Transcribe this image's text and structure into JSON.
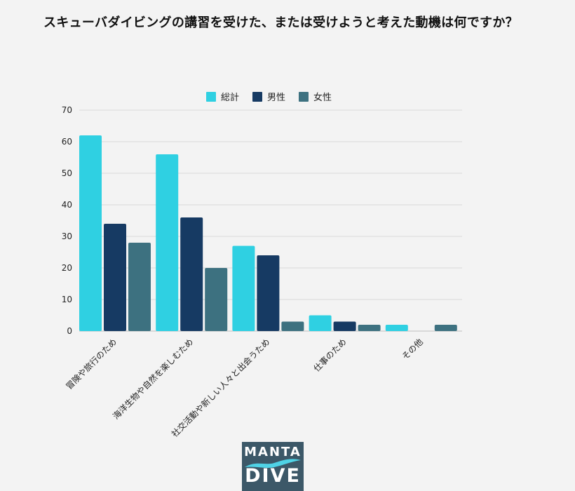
{
  "title": "スキューバダイビングの講習を受けた、または受けようと考えた動機は何ですか？",
  "chart_data": {
    "type": "bar",
    "categories": [
      "冒険や旅行のため",
      "海洋生物や自然を楽しむため",
      "社交活動や新しい人々と出会うため",
      "仕事のため",
      "その他"
    ],
    "series": [
      {
        "name": "総計",
        "values": [
          62,
          56,
          27,
          5,
          2
        ],
        "color": "#2fd0e2"
      },
      {
        "name": "男性",
        "values": [
          34,
          36,
          24,
          3,
          0
        ],
        "color": "#163a63"
      },
      {
        "name": "女性",
        "values": [
          28,
          20,
          3,
          2,
          2
        ],
        "color": "#3d7180"
      }
    ],
    "ylim": [
      0,
      70
    ],
    "yticks": [
      0,
      10,
      20,
      30,
      40,
      50,
      60,
      70
    ],
    "grid": true,
    "legend": "top-center"
  },
  "logo": {
    "line1": "MANTA",
    "line2": "DIVE",
    "accent": "#4fd3e6"
  }
}
